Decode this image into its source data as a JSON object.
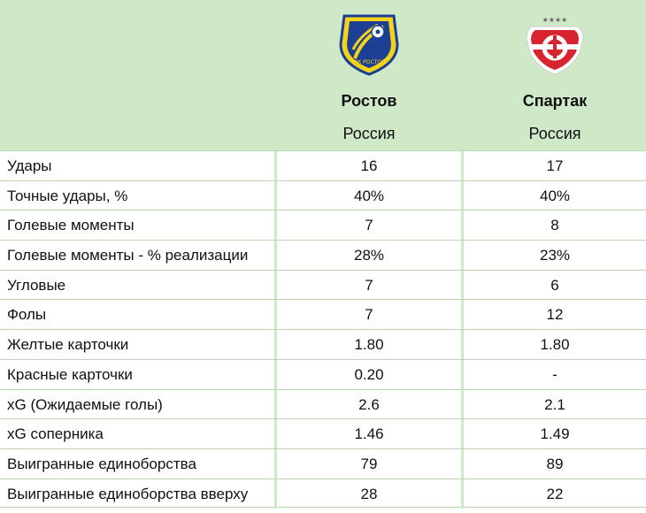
{
  "colors": {
    "header_bg": "#cfe8c8",
    "rostov_yellow": "#f3d318",
    "rostov_blue": "#1c3f94",
    "spartak_red": "#d8242f"
  },
  "teams": [
    {
      "name": "Ростов",
      "country": "Россия",
      "logo_icon": "rostov-crest-icon",
      "logo_text": "ФК РОСТОВ"
    },
    {
      "name": "Спартак",
      "country": "Россия",
      "logo_icon": "spartak-crest-icon",
      "logo_text": "★★★★"
    }
  ],
  "stats": [
    {
      "label": "Удары",
      "home": "16",
      "away": "17"
    },
    {
      "label": "Точные удары, %",
      "home": "40%",
      "away": "40%"
    },
    {
      "label": "Голевые моменты",
      "home": "7",
      "away": "8"
    },
    {
      "label": "Голевые моменты - % реализации",
      "home": "28%",
      "away": "23%"
    },
    {
      "label": "Угловые",
      "home": "7",
      "away": "6"
    },
    {
      "label": "Фолы",
      "home": "7",
      "away": "12"
    },
    {
      "label": "Желтые карточки",
      "home": "1.80",
      "away": "1.80"
    },
    {
      "label": "Красные карточки",
      "home": "0.20",
      "away": "-"
    },
    {
      "label": "xG (Ожидаемые голы)",
      "home": "2.6",
      "away": "2.1"
    },
    {
      "label": "xG соперника",
      "home": "1.46",
      "away": "1.49"
    },
    {
      "label": "Выигранные единоборства",
      "home": "79",
      "away": "89"
    },
    {
      "label": "Выигранные единоборства вверху",
      "home": "28",
      "away": "22"
    }
  ]
}
